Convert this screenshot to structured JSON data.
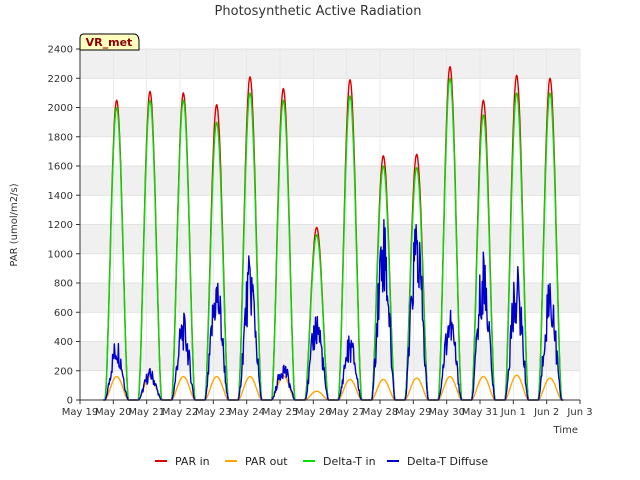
{
  "chart_data": {
    "type": "line",
    "title": "Photosynthetic Active Radiation",
    "xlabel": "Time",
    "ylabel": "PAR (umol/m2/s)",
    "badge": "VR_met",
    "ylim": [
      0,
      2400
    ],
    "yticks": [
      0,
      200,
      400,
      600,
      800,
      1000,
      1200,
      1400,
      1600,
      1800,
      2000,
      2200,
      2400
    ],
    "xlim": [
      0,
      15
    ],
    "xtick_labels": [
      "May 19",
      "May 20",
      "May 21",
      "May 22",
      "May 23",
      "May 24",
      "May 25",
      "May 26",
      "May 27",
      "May 28",
      "May 29",
      "May 30",
      "May 31",
      "Jun 1",
      "Jun 2",
      "Jun 3"
    ],
    "grid_bands": true,
    "legend_position": "bottom",
    "series": [
      {
        "name": "PAR in",
        "color": "#dd0000",
        "peaks": [
          2050,
          2110,
          2100,
          2020,
          2210,
          2130,
          1180,
          2190,
          1670,
          1680,
          2280,
          2050,
          2220,
          2200
        ]
      },
      {
        "name": "PAR out",
        "color": "#ffa500",
        "peaks": [
          160,
          160,
          160,
          160,
          160,
          165,
          60,
          140,
          140,
          150,
          160,
          160,
          170,
          150
        ]
      },
      {
        "name": "Delta-T in",
        "color": "#00dd00",
        "peaks": [
          2000,
          2050,
          2050,
          1900,
          2100,
          2050,
          1130,
          2080,
          1600,
          1590,
          2200,
          1950,
          2100,
          2100
        ]
      },
      {
        "name": "Delta-T Diffuse",
        "color": "#0000cc",
        "peaks": [
          440,
          220,
          600,
          900,
          1010,
          270,
          640,
          460,
          1320,
          1310,
          650,
          1050,
          940,
          880
        ]
      }
    ]
  }
}
